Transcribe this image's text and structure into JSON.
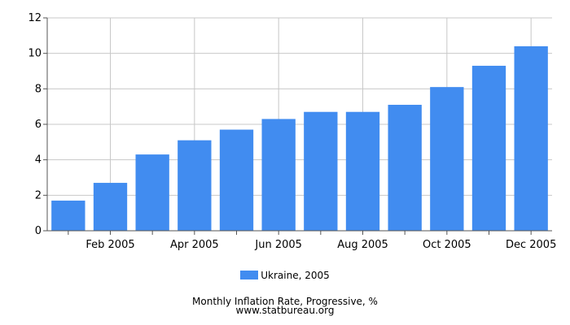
{
  "chart_data": {
    "type": "bar",
    "categories": [
      "Jan 2005",
      "Feb 2005",
      "Mar 2005",
      "Apr 2005",
      "May 2005",
      "Jun 2005",
      "Jul 2005",
      "Aug 2005",
      "Sep 2005",
      "Oct 2005",
      "Nov 2005",
      "Dec 2005"
    ],
    "x_tick_labels": [
      "",
      "Feb 2005",
      "",
      "Apr 2005",
      "",
      "Jun 2005",
      "",
      "Aug 2005",
      "",
      "Oct 2005",
      "",
      "Dec 2005"
    ],
    "series": [
      {
        "name": "Ukraine, 2005",
        "values": [
          1.7,
          2.7,
          4.3,
          5.1,
          5.7,
          6.3,
          6.7,
          6.7,
          7.1,
          8.1,
          9.3,
          10.4
        ]
      }
    ],
    "ylim": [
      0,
      12
    ],
    "y_ticks": [
      0,
      2,
      4,
      6,
      8,
      10,
      12
    ],
    "grid": true,
    "legend_position": "bottom",
    "title": "Monthly Inflation Rate, Progressive, %",
    "colors": {
      "bar": "#418cf0",
      "grid": "#c8c8c8",
      "axis": "#555555"
    }
  },
  "footer": {
    "line1": "Monthly Inflation Rate, Progressive, %",
    "line2": "www.statbureau.org"
  }
}
